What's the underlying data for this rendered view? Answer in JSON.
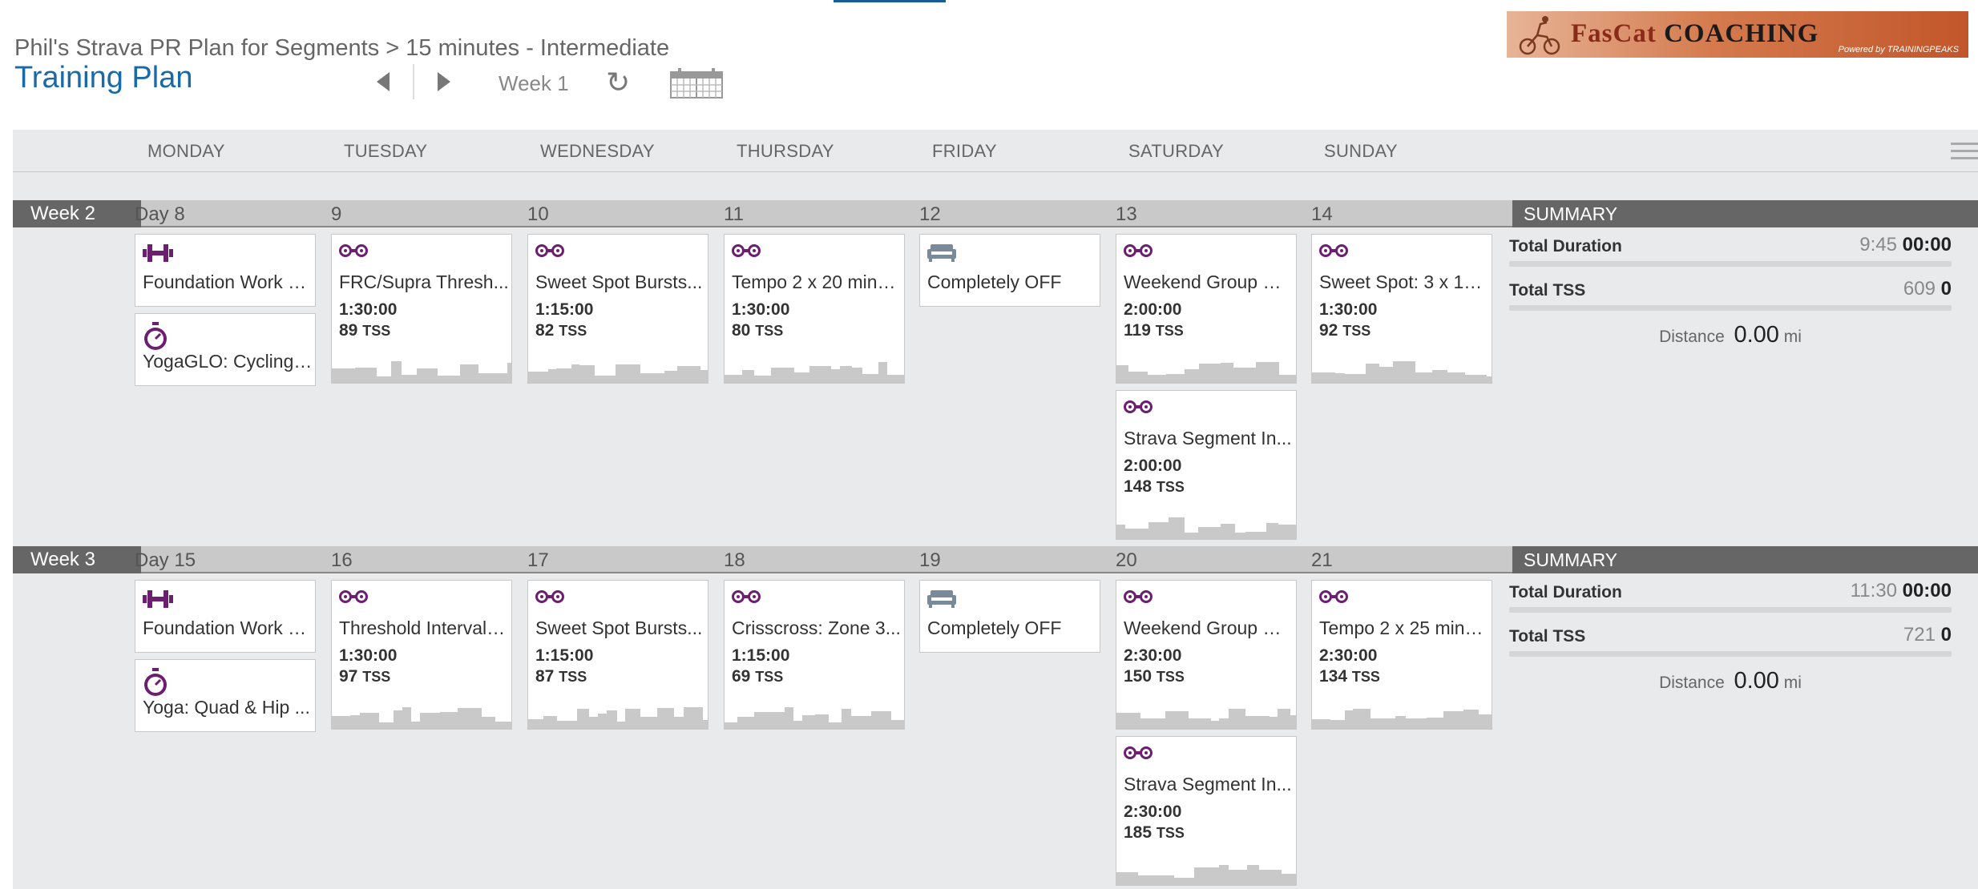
{
  "header": {
    "subtitle": "Phil's Strava PR Plan for Segments > 15 minutes - Intermediate",
    "title": "Training Plan",
    "week_label": "Week 1",
    "refresh_glyph": "↻"
  },
  "logo": {
    "text_fascat": "FasCat",
    "text_coaching": "COACHING",
    "powered": "Powered by TRAININGPEAKS"
  },
  "days": [
    "MONDAY",
    "TUESDAY",
    "WEDNESDAY",
    "THURSDAY",
    "FRIDAY",
    "SATURDAY",
    "SUNDAY"
  ],
  "colors": {
    "workout_icon": "#6b1f6e",
    "day_off_icon": "#7a8a99",
    "summary_header": "#666666"
  },
  "weeks": [
    {
      "label": "Week 2",
      "day_numbers": [
        "Day 8",
        "9",
        "10",
        "11",
        "12",
        "13",
        "14"
      ],
      "summary": {
        "header": "SUMMARY",
        "duration_label": "Total Duration",
        "duration_planned": "9:45",
        "duration_completed": "00:00",
        "tss_label": "Total TSS",
        "tss_planned": "609",
        "tss_completed": "0",
        "distance_label": "Distance",
        "distance_value": "0.00",
        "distance_unit": "mi"
      },
      "workouts": [
        {
          "day": 0,
          "icon": "dumbbell-icon",
          "title": "Foundation Work a...",
          "duration": "",
          "tss": ""
        },
        {
          "day": 0,
          "icon": "stopwatch-icon",
          "title": "YogaGLO: Cycling ...",
          "duration": "",
          "tss": ""
        },
        {
          "day": 1,
          "icon": "bike-icon",
          "title": "FRC/Supra Thresh...",
          "duration": "1:30:00",
          "tss": "89"
        },
        {
          "day": 2,
          "icon": "bike-icon",
          "title": "Sweet Spot Bursts...",
          "duration": "1:15:00",
          "tss": "82"
        },
        {
          "day": 3,
          "icon": "bike-icon",
          "title": "Tempo 2 x 20 minu...",
          "duration": "1:30:00",
          "tss": "80"
        },
        {
          "day": 4,
          "icon": "couch-icon",
          "title": "Completely OFF",
          "duration": "",
          "tss": ""
        },
        {
          "day": 5,
          "icon": "bike-icon",
          "title": "Weekend Group Ri...",
          "duration": "2:00:00",
          "tss": "119"
        },
        {
          "day": 5,
          "icon": "bike-icon",
          "title": "Strava Segment In...",
          "duration": "2:00:00",
          "tss": "148"
        },
        {
          "day": 6,
          "icon": "bike-icon",
          "title": "Sweet Spot: 3 x 15...",
          "duration": "1:30:00",
          "tss": "92"
        }
      ]
    },
    {
      "label": "Week 3",
      "day_numbers": [
        "Day 15",
        "16",
        "17",
        "18",
        "19",
        "20",
        "21"
      ],
      "summary": {
        "header": "SUMMARY",
        "duration_label": "Total Duration",
        "duration_planned": "11:30",
        "duration_completed": "00:00",
        "tss_label": "Total TSS",
        "tss_planned": "721",
        "tss_completed": "0",
        "distance_label": "Distance",
        "distance_value": "0.00",
        "distance_unit": "mi"
      },
      "workouts": [
        {
          "day": 0,
          "icon": "dumbbell-icon",
          "title": "Foundation Work a...",
          "duration": "",
          "tss": ""
        },
        {
          "day": 0,
          "icon": "stopwatch-icon",
          "title": "Yoga: Quad & Hip ...",
          "duration": "",
          "tss": ""
        },
        {
          "day": 1,
          "icon": "bike-icon",
          "title": "Threshold Intervals...",
          "duration": "1:30:00",
          "tss": "97"
        },
        {
          "day": 2,
          "icon": "bike-icon",
          "title": "Sweet Spot Bursts...",
          "duration": "1:15:00",
          "tss": "87"
        },
        {
          "day": 3,
          "icon": "bike-icon",
          "title": "Crisscross: Zone 3...",
          "duration": "1:15:00",
          "tss": "69"
        },
        {
          "day": 4,
          "icon": "couch-icon",
          "title": "Completely OFF",
          "duration": "",
          "tss": ""
        },
        {
          "day": 5,
          "icon": "bike-icon",
          "title": "Weekend Group Ri...",
          "duration": "2:30:00",
          "tss": "150"
        },
        {
          "day": 5,
          "icon": "bike-icon",
          "title": "Strava Segment In...",
          "duration": "2:30:00",
          "tss": "185"
        },
        {
          "day": 6,
          "icon": "bike-icon",
          "title": "Tempo 2 x 25 minu...",
          "duration": "2:30:00",
          "tss": "134"
        }
      ]
    }
  ],
  "tss_unit": "TSS"
}
